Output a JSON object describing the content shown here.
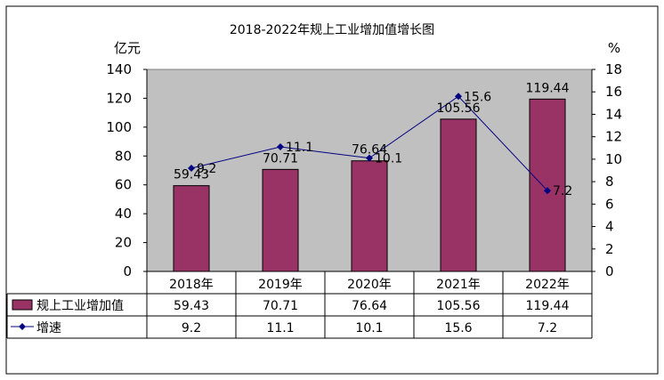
{
  "chart_data": {
    "type": "bar",
    "title": "2018-2022年规上工业增加值增长图",
    "ylabel_left": "亿元",
    "ylabel_right": "%",
    "categories": [
      "2018年",
      "2019年",
      "2020年",
      "2021年",
      "2022年"
    ],
    "ylim_left": [
      0,
      140
    ],
    "ylim_right": [
      0,
      18
    ],
    "yticks_left": [
      "0",
      "20",
      "40",
      "60",
      "80",
      "100",
      "120",
      "140"
    ],
    "yticks_right": [
      "0",
      "2",
      "4",
      "6",
      "8",
      "10",
      "12",
      "14",
      "16",
      "18"
    ],
    "series": [
      {
        "name": "规上工业增加值",
        "type": "bar",
        "axis": "left",
        "color": "#993366",
        "values": [
          59.43,
          70.71,
          76.64,
          105.56,
          119.44
        ],
        "labels": [
          "59.43",
          "70.71",
          "76.64",
          "105.56",
          "119.44"
        ]
      },
      {
        "name": "增速",
        "type": "line",
        "axis": "right",
        "color": "#000080",
        "values": [
          9.2,
          11.1,
          10.1,
          15.6,
          7.2
        ],
        "labels": [
          "9.2",
          "11.1",
          "10.1",
          "15.6",
          "7.2"
        ]
      }
    ],
    "plot_background": "#c0c0c0",
    "legend_placement": "data-table-below"
  }
}
